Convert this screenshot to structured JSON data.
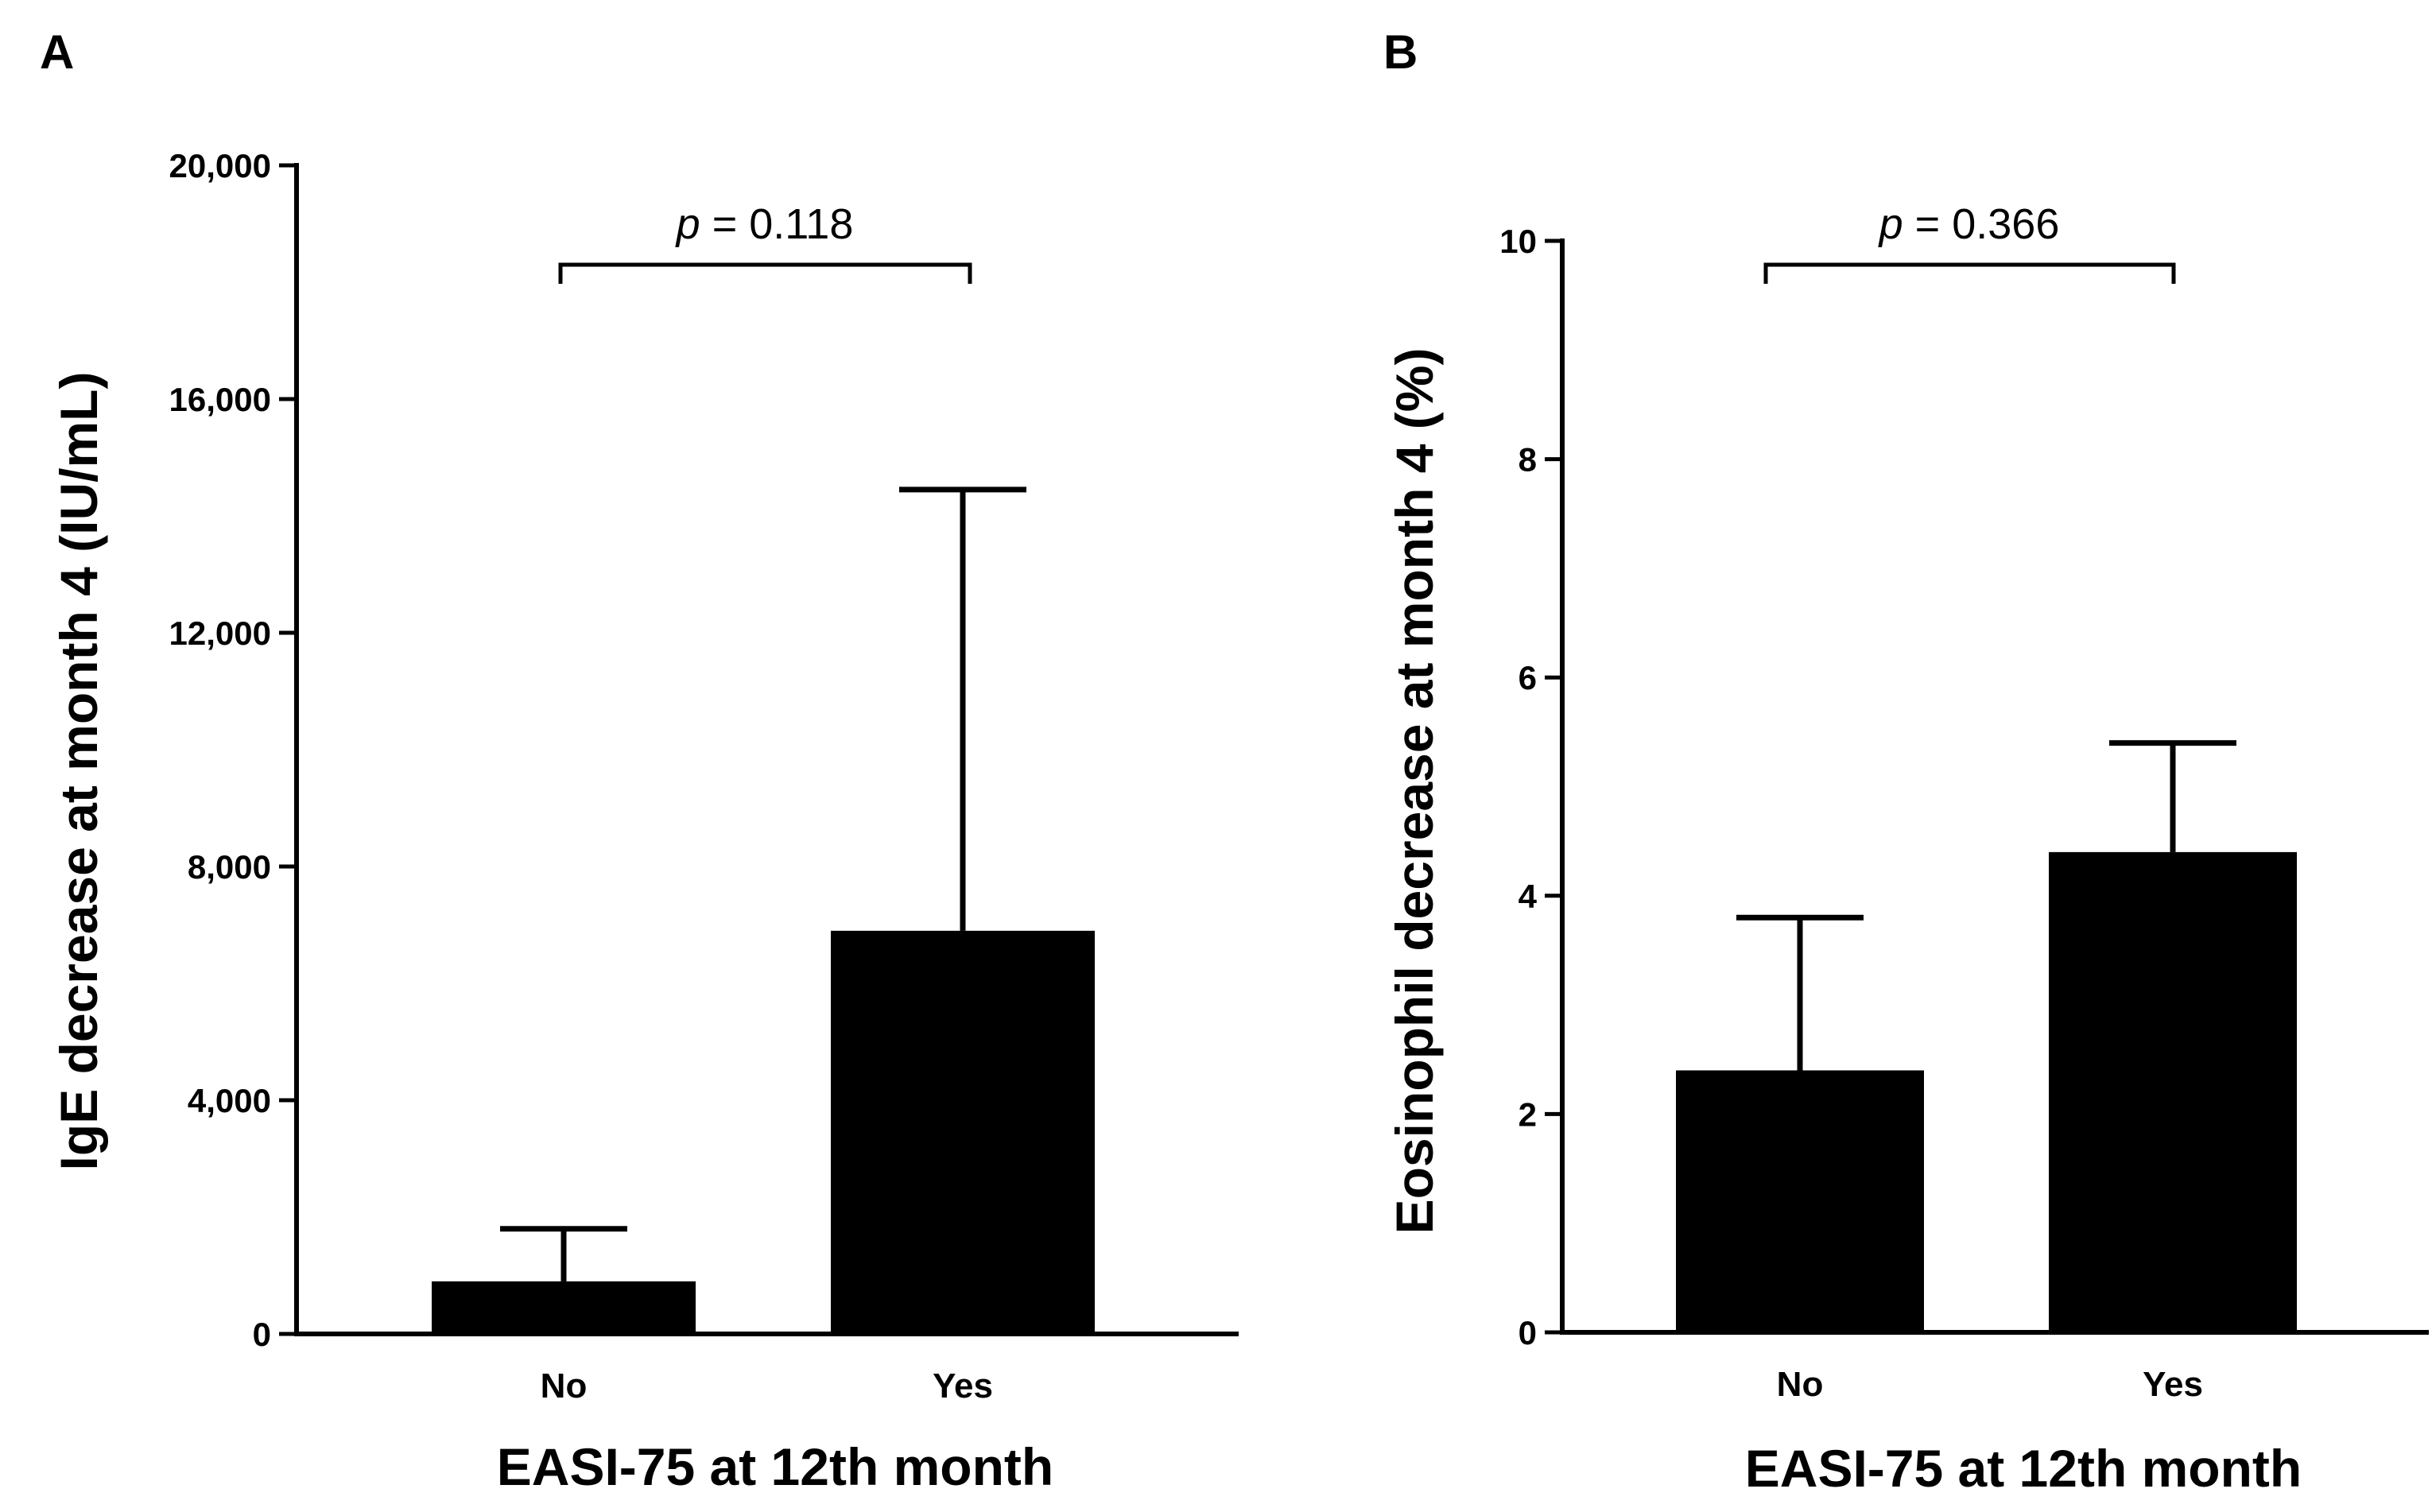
{
  "panels": [
    {
      "label": "A",
      "pvalue": {
        "symbol": "p",
        "text": " = 0.118"
      }
    },
    {
      "label": "B",
      "pvalue": {
        "symbol": "p",
        "text": " = 0.366"
      }
    }
  ],
  "colors": {
    "bar": "#000000",
    "axis": "#000000",
    "background": "#ffffff"
  },
  "chart_data": [
    {
      "type": "bar",
      "panel": "A",
      "title": "",
      "categories": [
        "No",
        "Yes"
      ],
      "values": [
        900,
        6900
      ],
      "error_upper": [
        1800,
        14450
      ],
      "xlabel": "EASI-75 at 12th month",
      "ylabel": "IgE decrease at month 4 (IU/mL)",
      "ylim": [
        0,
        20000
      ],
      "yticks": [
        0,
        4000,
        8000,
        12000,
        16000,
        20000
      ],
      "ytick_labels": [
        "0",
        "4,000",
        "8,000",
        "12,000",
        "16,000",
        "20,000"
      ],
      "annotation": "p = 0.118",
      "grid": false
    },
    {
      "type": "bar",
      "panel": "B",
      "title": "",
      "categories": [
        "No",
        "Yes"
      ],
      "values": [
        2.4,
        4.4
      ],
      "error_upper": [
        3.8,
        5.4
      ],
      "xlabel": "EASI-75 at 12th month",
      "ylabel": "Eosinophil decrease at month 4 (%)",
      "ylim": [
        0,
        10
      ],
      "yticks": [
        0,
        2,
        4,
        6,
        8,
        10
      ],
      "ytick_labels": [
        "0",
        "2",
        "4",
        "6",
        "8",
        "10"
      ],
      "annotation": "p = 0.366",
      "grid": false
    }
  ]
}
